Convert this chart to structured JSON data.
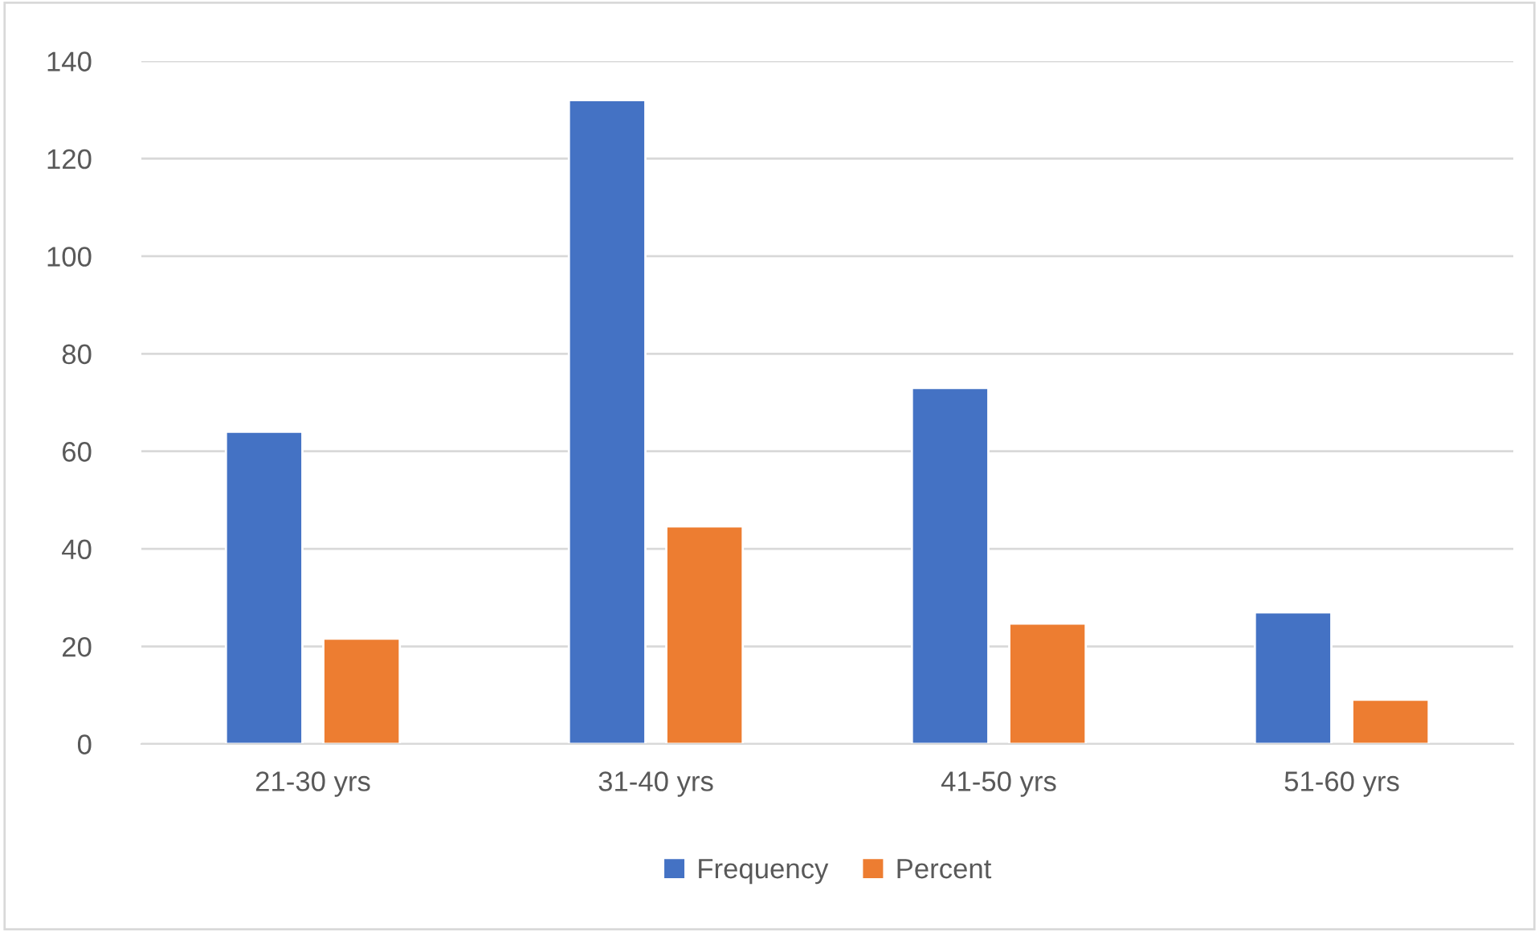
{
  "chart_data": {
    "type": "bar",
    "categories": [
      "21-30 yrs",
      "31-40 yrs",
      "41-50 yrs",
      "51-60 yrs"
    ],
    "series": [
      {
        "name": "Frequency",
        "color": "#4472c4",
        "values": [
          64,
          132,
          73,
          27
        ]
      },
      {
        "name": "Percent",
        "color": "#ed7d31",
        "values": [
          21.6,
          44.6,
          24.7,
          9.1
        ]
      }
    ],
    "ylim": [
      0,
      140
    ],
    "yticks": [
      0,
      20,
      40,
      60,
      80,
      100,
      120,
      140
    ],
    "grid": "y",
    "legend": "bottom"
  }
}
